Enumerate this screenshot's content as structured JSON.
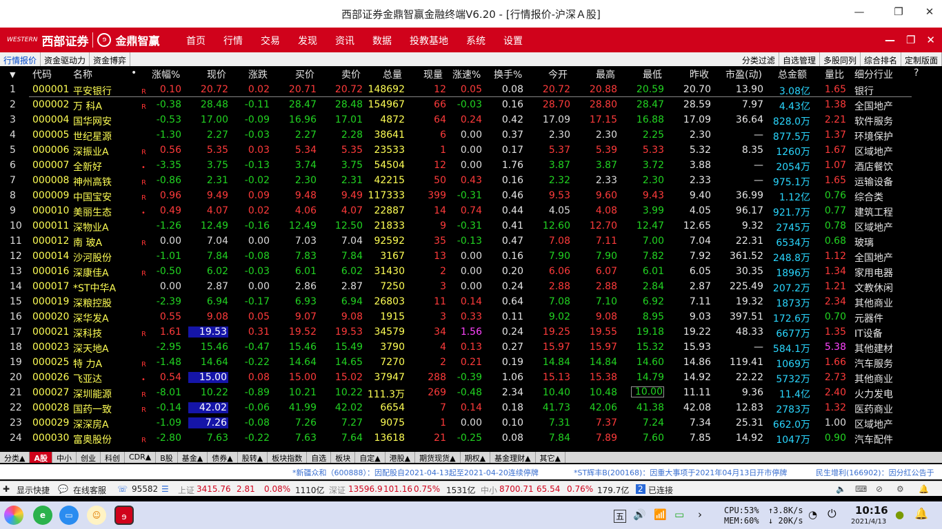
{
  "window": {
    "title": "西部证券金鼎智赢金融终端V6.20 - [行情报价-沪深Ａ股]"
  },
  "menubar": {
    "brand1": "西部证券",
    "brand2": "金鼎智赢",
    "items": [
      "首页",
      "行情",
      "交易",
      "发现",
      "资讯",
      "数据",
      "投教基地",
      "系统",
      "设置"
    ]
  },
  "subtabs": {
    "left": [
      "行情报价",
      "资金驱动力",
      "资金博弈"
    ],
    "right": [
      "分类过滤",
      "自选管理",
      "多股同列",
      "综合排名",
      "定制版面"
    ]
  },
  "table": {
    "headers": [
      "代码",
      "名称",
      "•",
      "涨幅%",
      "现价",
      "涨跌",
      "买价",
      "卖价",
      "总量",
      "现量",
      "涨速%",
      "换手%",
      "今开",
      "最高",
      "最低",
      "昨收",
      "市盈(动)",
      "总金额",
      "量比",
      "细分行业",
      "?"
    ],
    "rows": [
      {
        "n": "1",
        "code": "000001",
        "name": "平安银行",
        "r": "R",
        "chg": "0.10",
        "price": "20.72",
        "d": "0.02",
        "bid": "20.71",
        "ask": "20.72",
        "vol": "148692",
        "cur": "12",
        "spd": "0.05",
        "turn": "0.08",
        "open": "20.72",
        "high": "20.88",
        "low": "20.59",
        "prev": "20.70",
        "pe": "13.90",
        "amt": "3.08亿",
        "ratio": "1.65",
        "ind": "银行",
        "dir": "up",
        "oc": "up",
        "hc": "up",
        "lc": "dn",
        "sc": "up",
        "rc": "up"
      },
      {
        "n": "2",
        "code": "000002",
        "name": "万 科A",
        "r": "R",
        "chg": "-0.38",
        "price": "28.48",
        "d": "-0.11",
        "bid": "28.47",
        "ask": "28.48",
        "vol": "154967",
        "cur": "66",
        "spd": "-0.03",
        "turn": "0.16",
        "open": "28.70",
        "high": "28.80",
        "low": "28.47",
        "prev": "28.59",
        "pe": "7.97",
        "amt": "4.43亿",
        "ratio": "1.38",
        "ind": "全国地产",
        "dir": "dn",
        "oc": "up",
        "hc": "up",
        "lc": "dn",
        "sc": "dn",
        "rc": "up"
      },
      {
        "n": "3",
        "code": "000004",
        "name": "国华网安",
        "r": "",
        "chg": "-0.53",
        "price": "17.00",
        "d": "-0.09",
        "bid": "16.96",
        "ask": "17.01",
        "vol": "4872",
        "cur": "64",
        "spd": "0.24",
        "turn": "0.42",
        "open": "17.09",
        "high": "17.15",
        "low": "16.88",
        "prev": "17.09",
        "pe": "36.64",
        "amt": "828.0万",
        "ratio": "2.21",
        "ind": "软件服务",
        "dir": "dn",
        "oc": "eq",
        "hc": "up",
        "lc": "dn",
        "sc": "up",
        "rc": "up"
      },
      {
        "n": "4",
        "code": "000005",
        "name": "世纪星源",
        "r": "",
        "chg": "-1.30",
        "price": "2.27",
        "d": "-0.03",
        "bid": "2.27",
        "ask": "2.28",
        "vol": "38641",
        "cur": "6",
        "spd": "0.00",
        "turn": "0.37",
        "open": "2.30",
        "high": "2.30",
        "low": "2.25",
        "prev": "2.30",
        "pe": "—",
        "amt": "877.5万",
        "ratio": "1.37",
        "ind": "环境保护",
        "dir": "dn",
        "oc": "eq",
        "hc": "eq",
        "lc": "dn",
        "sc": "eq",
        "rc": "up"
      },
      {
        "n": "5",
        "code": "000006",
        "name": "深振业A",
        "r": "R",
        "chg": "0.56",
        "price": "5.35",
        "d": "0.03",
        "bid": "5.34",
        "ask": "5.35",
        "vol": "23533",
        "cur": "1",
        "spd": "0.00",
        "turn": "0.17",
        "open": "5.37",
        "high": "5.39",
        "low": "5.33",
        "prev": "5.32",
        "pe": "8.35",
        "amt": "1260万",
        "ratio": "1.67",
        "ind": "区域地产",
        "dir": "up",
        "oc": "up",
        "hc": "up",
        "lc": "up",
        "sc": "eq",
        "rc": "up"
      },
      {
        "n": "6",
        "code": "000007",
        "name": "全新好",
        "r": "•",
        "chg": "-3.35",
        "price": "3.75",
        "d": "-0.13",
        "bid": "3.74",
        "ask": "3.75",
        "vol": "54504",
        "cur": "12",
        "spd": "0.00",
        "turn": "1.76",
        "open": "3.87",
        "high": "3.87",
        "low": "3.72",
        "prev": "3.88",
        "pe": "—",
        "amt": "2054万",
        "ratio": "1.07",
        "ind": "酒店餐饮",
        "dir": "dn",
        "oc": "dn",
        "hc": "dn",
        "lc": "dn",
        "sc": "eq",
        "rc": "up"
      },
      {
        "n": "7",
        "code": "000008",
        "name": "神州高铁",
        "r": "R",
        "chg": "-0.86",
        "price": "2.31",
        "d": "-0.02",
        "bid": "2.30",
        "ask": "2.31",
        "vol": "42215",
        "cur": "50",
        "spd": "0.43",
        "turn": "0.16",
        "open": "2.32",
        "high": "2.33",
        "low": "2.30",
        "prev": "2.33",
        "pe": "—",
        "amt": "975.1万",
        "ratio": "1.65",
        "ind": "运输设备",
        "dir": "dn",
        "oc": "dn",
        "hc": "eq",
        "lc": "dn",
        "sc": "up",
        "rc": "up"
      },
      {
        "n": "8",
        "code": "000009",
        "name": "中国宝安",
        "r": "R",
        "chg": "0.96",
        "price": "9.49",
        "d": "0.09",
        "bid": "9.48",
        "ask": "9.49",
        "vol": "117333",
        "cur": "399",
        "spd": "-0.31",
        "turn": "0.46",
        "open": "9.53",
        "high": "9.60",
        "low": "9.43",
        "prev": "9.40",
        "pe": "36.99",
        "amt": "1.12亿",
        "ratio": "0.76",
        "ind": "综合类",
        "dir": "up",
        "oc": "up",
        "hc": "up",
        "lc": "up",
        "sc": "dn",
        "rc": "dn"
      },
      {
        "n": "9",
        "code": "000010",
        "name": "美丽生态",
        "r": "•",
        "chg": "0.49",
        "price": "4.07",
        "d": "0.02",
        "bid": "4.06",
        "ask": "4.07",
        "vol": "22887",
        "cur": "14",
        "spd": "0.74",
        "turn": "0.44",
        "open": "4.05",
        "high": "4.08",
        "low": "3.99",
        "prev": "4.05",
        "pe": "96.17",
        "amt": "921.7万",
        "ratio": "0.77",
        "ind": "建筑工程",
        "dir": "up",
        "oc": "eq",
        "hc": "up",
        "lc": "dn",
        "sc": "up",
        "rc": "dn"
      },
      {
        "n": "10",
        "code": "000011",
        "name": "深物业A",
        "r": "",
        "chg": "-1.26",
        "price": "12.49",
        "d": "-0.16",
        "bid": "12.49",
        "ask": "12.50",
        "vol": "21833",
        "cur": "9",
        "spd": "-0.31",
        "turn": "0.41",
        "open": "12.60",
        "high": "12.70",
        "low": "12.47",
        "prev": "12.65",
        "pe": "9.32",
        "amt": "2745万",
        "ratio": "0.78",
        "ind": "区域地产",
        "dir": "dn",
        "oc": "dn",
        "hc": "up",
        "lc": "dn",
        "sc": "dn",
        "rc": "dn"
      },
      {
        "n": "11",
        "code": "000012",
        "name": "南 玻A",
        "r": "R",
        "chg": "0.00",
        "price": "7.04",
        "d": "0.00",
        "bid": "7.03",
        "ask": "7.04",
        "vol": "92592",
        "cur": "35",
        "spd": "-0.13",
        "turn": "0.47",
        "open": "7.08",
        "high": "7.11",
        "low": "7.00",
        "prev": "7.04",
        "pe": "22.31",
        "amt": "6534万",
        "ratio": "0.68",
        "ind": "玻璃",
        "dir": "eq",
        "oc": "up",
        "hc": "up",
        "lc": "dn",
        "sc": "dn",
        "rc": "dn"
      },
      {
        "n": "12",
        "code": "000014",
        "name": "沙河股份",
        "r": "",
        "chg": "-1.01",
        "price": "7.84",
        "d": "-0.08",
        "bid": "7.83",
        "ask": "7.84",
        "vol": "3167",
        "cur": "13",
        "spd": "0.00",
        "turn": "0.16",
        "open": "7.90",
        "high": "7.90",
        "low": "7.82",
        "prev": "7.92",
        "pe": "361.52",
        "amt": "248.8万",
        "ratio": "1.12",
        "ind": "全国地产",
        "dir": "dn",
        "oc": "dn",
        "hc": "dn",
        "lc": "dn",
        "sc": "eq",
        "rc": "up"
      },
      {
        "n": "13",
        "code": "000016",
        "name": "深康佳A",
        "r": "R",
        "chg": "-0.50",
        "price": "6.02",
        "d": "-0.03",
        "bid": "6.01",
        "ask": "6.02",
        "vol": "31430",
        "cur": "2",
        "spd": "0.00",
        "turn": "0.20",
        "open": "6.06",
        "high": "6.07",
        "low": "6.01",
        "prev": "6.05",
        "pe": "30.35",
        "amt": "1896万",
        "ratio": "1.34",
        "ind": "家用电器",
        "dir": "dn",
        "oc": "up",
        "hc": "up",
        "lc": "dn",
        "sc": "eq",
        "rc": "up"
      },
      {
        "n": "14",
        "code": "000017",
        "name": "*ST中华A",
        "r": "",
        "chg": "0.00",
        "price": "2.87",
        "d": "0.00",
        "bid": "2.86",
        "ask": "2.87",
        "vol": "7250",
        "cur": "3",
        "spd": "0.00",
        "turn": "0.24",
        "open": "2.88",
        "high": "2.88",
        "low": "2.84",
        "prev": "2.87",
        "pe": "225.49",
        "amt": "207.2万",
        "ratio": "1.21",
        "ind": "文教休闲",
        "dir": "eq",
        "oc": "up",
        "hc": "up",
        "lc": "dn",
        "sc": "eq",
        "rc": "up"
      },
      {
        "n": "15",
        "code": "000019",
        "name": "深粮控股",
        "r": "",
        "chg": "-2.39",
        "price": "6.94",
        "d": "-0.17",
        "bid": "6.93",
        "ask": "6.94",
        "vol": "26803",
        "cur": "11",
        "spd": "0.14",
        "turn": "0.64",
        "open": "7.08",
        "high": "7.10",
        "low": "6.92",
        "prev": "7.11",
        "pe": "19.32",
        "amt": "1873万",
        "ratio": "2.34",
        "ind": "其他商业",
        "dir": "dn",
        "oc": "dn",
        "hc": "dn",
        "lc": "dn",
        "sc": "up",
        "rc": "up"
      },
      {
        "n": "16",
        "code": "000020",
        "name": "深华发A",
        "r": "",
        "chg": "0.55",
        "price": "9.08",
        "d": "0.05",
        "bid": "9.07",
        "ask": "9.08",
        "vol": "1915",
        "cur": "3",
        "spd": "0.33",
        "turn": "0.11",
        "open": "9.02",
        "high": "9.08",
        "low": "8.95",
        "prev": "9.03",
        "pe": "397.51",
        "amt": "172.6万",
        "ratio": "0.70",
        "ind": "元器件",
        "dir": "up",
        "oc": "dn",
        "hc": "up",
        "lc": "dn",
        "sc": "up",
        "rc": "dn"
      },
      {
        "n": "17",
        "code": "000021",
        "name": "深科技",
        "r": "R",
        "chg": "1.61",
        "price": "19.53",
        "d": "0.31",
        "bid": "19.52",
        "ask": "19.53",
        "vol": "34579",
        "cur": "34",
        "spd": "1.56",
        "turn": "0.24",
        "open": "19.25",
        "high": "19.55",
        "low": "19.18",
        "prev": "19.22",
        "pe": "48.33",
        "amt": "6677万",
        "ratio": "1.35",
        "ind": "IT设备",
        "dir": "up",
        "oc": "up",
        "hc": "up",
        "lc": "dn",
        "sc": "mg",
        "rc": "up",
        "hl": true
      },
      {
        "n": "18",
        "code": "000023",
        "name": "深天地A",
        "r": "",
        "chg": "-2.95",
        "price": "15.46",
        "d": "-0.47",
        "bid": "15.46",
        "ask": "15.49",
        "vol": "3790",
        "cur": "4",
        "spd": "0.13",
        "turn": "0.27",
        "open": "15.97",
        "high": "15.97",
        "low": "15.32",
        "prev": "15.93",
        "pe": "—",
        "amt": "584.1万",
        "ratio": "5.38",
        "ind": "其他建材",
        "dir": "dn",
        "oc": "up",
        "hc": "up",
        "lc": "dn",
        "sc": "up",
        "rc": "mg"
      },
      {
        "n": "19",
        "code": "000025",
        "name": "特 力A",
        "r": "R",
        "chg": "-1.48",
        "price": "14.64",
        "d": "-0.22",
        "bid": "14.64",
        "ask": "14.65",
        "vol": "7270",
        "cur": "2",
        "spd": "0.21",
        "turn": "0.19",
        "open": "14.84",
        "high": "14.84",
        "low": "14.60",
        "prev": "14.86",
        "pe": "119.41",
        "amt": "1069万",
        "ratio": "1.66",
        "ind": "汽车服务",
        "dir": "dn",
        "oc": "dn",
        "hc": "dn",
        "lc": "dn",
        "sc": "up",
        "rc": "up"
      },
      {
        "n": "20",
        "code": "000026",
        "name": "飞亚达",
        "r": "•",
        "chg": "0.54",
        "price": "15.00",
        "d": "0.08",
        "bid": "15.00",
        "ask": "15.02",
        "vol": "37947",
        "cur": "288",
        "spd": "-0.39",
        "turn": "1.06",
        "open": "15.13",
        "high": "15.38",
        "low": "14.79",
        "prev": "14.92",
        "pe": "22.22",
        "amt": "5732万",
        "ratio": "2.73",
        "ind": "其他商业",
        "dir": "up",
        "oc": "up",
        "hc": "up",
        "lc": "dn",
        "sc": "dn",
        "rc": "up",
        "hl": true
      },
      {
        "n": "21",
        "code": "000027",
        "name": "深圳能源",
        "r": "R",
        "chg": "-8.01",
        "price": "10.22",
        "d": "-0.89",
        "bid": "10.21",
        "ask": "10.22",
        "vol": "111.3万",
        "cur": "269",
        "spd": "-0.48",
        "turn": "2.34",
        "open": "10.40",
        "high": "10.48",
        "low": "10.00",
        "prev": "11.11",
        "pe": "9.36",
        "amt": "11.4亿",
        "ratio": "2.40",
        "ind": "火力发电",
        "dir": "dn",
        "oc": "dn",
        "hc": "dn",
        "lc": "dn",
        "sc": "dn",
        "rc": "up",
        "box": true
      },
      {
        "n": "22",
        "code": "000028",
        "name": "国药一致",
        "r": "R",
        "chg": "-0.14",
        "price": "42.02",
        "d": "-0.06",
        "bid": "41.99",
        "ask": "42.02",
        "vol": "6654",
        "cur": "7",
        "spd": "0.14",
        "turn": "0.18",
        "open": "41.73",
        "high": "42.06",
        "low": "41.38",
        "prev": "42.08",
        "pe": "12.83",
        "amt": "2783万",
        "ratio": "1.32",
        "ind": "医药商业",
        "dir": "dn",
        "oc": "dn",
        "hc": "dn",
        "lc": "dn",
        "sc": "up",
        "rc": "up",
        "hl": true
      },
      {
        "n": "23",
        "code": "000029",
        "name": "深深房A",
        "r": "",
        "chg": "-1.09",
        "price": "7.26",
        "d": "-0.08",
        "bid": "7.26",
        "ask": "7.27",
        "vol": "9075",
        "cur": "1",
        "spd": "0.00",
        "turn": "0.10",
        "open": "7.31",
        "high": "7.37",
        "low": "7.24",
        "prev": "7.34",
        "pe": "25.31",
        "amt": "662.0万",
        "ratio": "1.00",
        "ind": "区域地产",
        "dir": "dn",
        "oc": "dn",
        "hc": "up",
        "lc": "dn",
        "sc": "eq",
        "rc": "eq",
        "hl": true
      },
      {
        "n": "24",
        "code": "000030",
        "name": "富奥股份",
        "r": "R",
        "chg": "-2.80",
        "price": "7.63",
        "d": "-0.22",
        "bid": "7.63",
        "ask": "7.64",
        "vol": "13618",
        "cur": "21",
        "spd": "-0.25",
        "turn": "0.08",
        "open": "7.84",
        "high": "7.89",
        "low": "7.60",
        "prev": "7.85",
        "pe": "14.92",
        "amt": "1047万",
        "ratio": "0.90",
        "ind": "汽车配件",
        "dir": "dn",
        "oc": "dn",
        "hc": "up",
        "lc": "dn",
        "sc": "dn",
        "rc": "dn"
      }
    ]
  },
  "bottomtabs": [
    "分类▲",
    "A股",
    "中小",
    "创业",
    "科创",
    "CDR▲",
    "B股",
    "基金▲",
    "债券▲",
    "股转▲",
    "板块指数",
    "自选",
    "板块",
    "自定▲",
    "港股▲",
    "期货现货▲",
    "期权▲",
    "基金理财▲",
    "其它▲"
  ],
  "ticker": [
    "*新疆众和（600888）：因配股自2021-04-13起至2021-04-20连续停牌",
    "*ST辉丰B(200168)：因重大事项于2021年04月13日开市停牌",
    "民生增利(166902)：因分红公告于"
  ],
  "status": {
    "quick": "显示快捷",
    "service": "在线客服",
    "phone": "95582",
    "sh_label": "上证",
    "sh_val": "3415.76",
    "sh_chg": "2.81",
    "sh_pct": "0.08%",
    "sh_amt": "1110亿",
    "sz_label": "深证",
    "sz_val": "13596.9",
    "sz_chg": "101.16",
    "sz_pct": "0.75%",
    "sz_amt": "1531亿",
    "zx_label": "中小",
    "zx_val": "8700.71",
    "zx_chg": "65.54",
    "zx_pct": "0.76%",
    "zx_amt": "179.7亿",
    "conn_n": "2",
    "conn": "已连接"
  },
  "taskbar": {
    "ime": "五",
    "cpu": "CPU:53%",
    "mem": "MEM:60%",
    "up": "↑3.8K/s",
    "down": "↓ 20K/s",
    "time": "10:16",
    "date": "2021/4/13"
  },
  "colors": {
    "brand_red": "#d0021b",
    "up": "#ff3b3b",
    "down": "#22d422",
    "code_yellow": "#ffff55",
    "amount_cyan": "#2ad7ff"
  }
}
